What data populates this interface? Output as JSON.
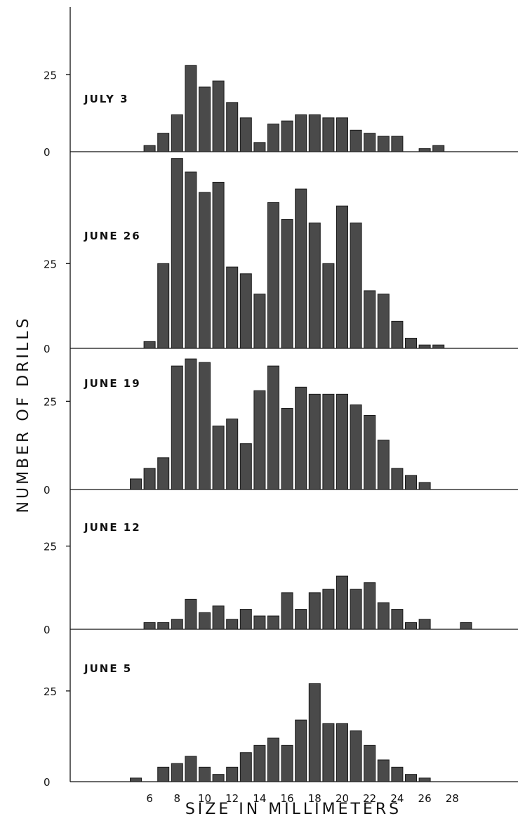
{
  "chart_data": {
    "type": "bar",
    "xlabel": "SIZE IN MILLIMETERS",
    "ylabel": "NUMBER OF DRILLS",
    "x_ticks": [
      6,
      8,
      10,
      12,
      14,
      16,
      18,
      20,
      22,
      24,
      26,
      28
    ],
    "y_ticks": [
      0,
      25
    ],
    "panels": [
      {
        "label": "JULY 3",
        "ylim": [
          0,
          47
        ],
        "bars": [
          {
            "x": 6,
            "value": 2
          },
          {
            "x": 7,
            "value": 6
          },
          {
            "x": 8,
            "value": 12
          },
          {
            "x": 9,
            "value": 28
          },
          {
            "x": 10,
            "value": 21
          },
          {
            "x": 11,
            "value": 23
          },
          {
            "x": 12,
            "value": 16
          },
          {
            "x": 13,
            "value": 11
          },
          {
            "x": 14,
            "value": 3
          },
          {
            "x": 15,
            "value": 9
          },
          {
            "x": 16,
            "value": 10
          },
          {
            "x": 17,
            "value": 12
          },
          {
            "x": 18,
            "value": 12
          },
          {
            "x": 19,
            "value": 11
          },
          {
            "x": 20,
            "value": 11
          },
          {
            "x": 21,
            "value": 7
          },
          {
            "x": 22,
            "value": 6
          },
          {
            "x": 23,
            "value": 5
          },
          {
            "x": 24,
            "value": 5
          },
          {
            "x": 26,
            "value": 1
          },
          {
            "x": 27,
            "value": 2
          }
        ]
      },
      {
        "label": "JUNE 26",
        "ylim": [
          0,
          58
        ],
        "bars": [
          {
            "x": 6,
            "value": 2
          },
          {
            "x": 7,
            "value": 25
          },
          {
            "x": 8,
            "value": 56
          },
          {
            "x": 9,
            "value": 52
          },
          {
            "x": 10,
            "value": 46
          },
          {
            "x": 11,
            "value": 49
          },
          {
            "x": 12,
            "value": 24
          },
          {
            "x": 13,
            "value": 22
          },
          {
            "x": 14,
            "value": 16
          },
          {
            "x": 15,
            "value": 43
          },
          {
            "x": 16,
            "value": 38
          },
          {
            "x": 17,
            "value": 47
          },
          {
            "x": 18,
            "value": 37
          },
          {
            "x": 19,
            "value": 25
          },
          {
            "x": 20,
            "value": 42
          },
          {
            "x": 21,
            "value": 37
          },
          {
            "x": 22,
            "value": 17
          },
          {
            "x": 23,
            "value": 16
          },
          {
            "x": 24,
            "value": 8
          },
          {
            "x": 25,
            "value": 3
          },
          {
            "x": 26,
            "value": 1
          },
          {
            "x": 27,
            "value": 1
          }
        ]
      },
      {
        "label": "JUNE 19",
        "ylim": [
          0,
          40
        ],
        "bars": [
          {
            "x": 5,
            "value": 3
          },
          {
            "x": 6,
            "value": 6
          },
          {
            "x": 7,
            "value": 9
          },
          {
            "x": 8,
            "value": 35
          },
          {
            "x": 9,
            "value": 37
          },
          {
            "x": 10,
            "value": 36
          },
          {
            "x": 11,
            "value": 18
          },
          {
            "x": 12,
            "value": 20
          },
          {
            "x": 13,
            "value": 13
          },
          {
            "x": 14,
            "value": 28
          },
          {
            "x": 15,
            "value": 35
          },
          {
            "x": 16,
            "value": 23
          },
          {
            "x": 17,
            "value": 29
          },
          {
            "x": 18,
            "value": 27
          },
          {
            "x": 19,
            "value": 27
          },
          {
            "x": 20,
            "value": 27
          },
          {
            "x": 21,
            "value": 24
          },
          {
            "x": 22,
            "value": 21
          },
          {
            "x": 23,
            "value": 14
          },
          {
            "x": 24,
            "value": 6
          },
          {
            "x": 25,
            "value": 4
          },
          {
            "x": 26,
            "value": 2
          }
        ]
      },
      {
        "label": "JUNE 12",
        "ylim": [
          0,
          42
        ],
        "bars": [
          {
            "x": 6,
            "value": 2
          },
          {
            "x": 7,
            "value": 2
          },
          {
            "x": 8,
            "value": 3
          },
          {
            "x": 9,
            "value": 9
          },
          {
            "x": 10,
            "value": 5
          },
          {
            "x": 11,
            "value": 7
          },
          {
            "x": 12,
            "value": 3
          },
          {
            "x": 13,
            "value": 6
          },
          {
            "x": 14,
            "value": 4
          },
          {
            "x": 15,
            "value": 4
          },
          {
            "x": 16,
            "value": 11
          },
          {
            "x": 17,
            "value": 6
          },
          {
            "x": 18,
            "value": 11
          },
          {
            "x": 19,
            "value": 12
          },
          {
            "x": 20,
            "value": 16
          },
          {
            "x": 21,
            "value": 12
          },
          {
            "x": 22,
            "value": 14
          },
          {
            "x": 23,
            "value": 8
          },
          {
            "x": 24,
            "value": 6
          },
          {
            "x": 25,
            "value": 2
          },
          {
            "x": 26,
            "value": 3
          },
          {
            "x": 29,
            "value": 2
          }
        ]
      },
      {
        "label": "JUNE 5",
        "ylim": [
          0,
          42
        ],
        "bars": [
          {
            "x": 5,
            "value": 1
          },
          {
            "x": 7,
            "value": 4
          },
          {
            "x": 8,
            "value": 5
          },
          {
            "x": 9,
            "value": 7
          },
          {
            "x": 10,
            "value": 4
          },
          {
            "x": 11,
            "value": 2
          },
          {
            "x": 12,
            "value": 4
          },
          {
            "x": 13,
            "value": 8
          },
          {
            "x": 14,
            "value": 10
          },
          {
            "x": 15,
            "value": 12
          },
          {
            "x": 16,
            "value": 10
          },
          {
            "x": 17,
            "value": 17
          },
          {
            "x": 18,
            "value": 27
          },
          {
            "x": 19,
            "value": 16
          },
          {
            "x": 20,
            "value": 16
          },
          {
            "x": 21,
            "value": 14
          },
          {
            "x": 22,
            "value": 10
          },
          {
            "x": 23,
            "value": 6
          },
          {
            "x": 24,
            "value": 4
          },
          {
            "x": 25,
            "value": 2
          },
          {
            "x": 26,
            "value": 1
          }
        ]
      }
    ]
  }
}
